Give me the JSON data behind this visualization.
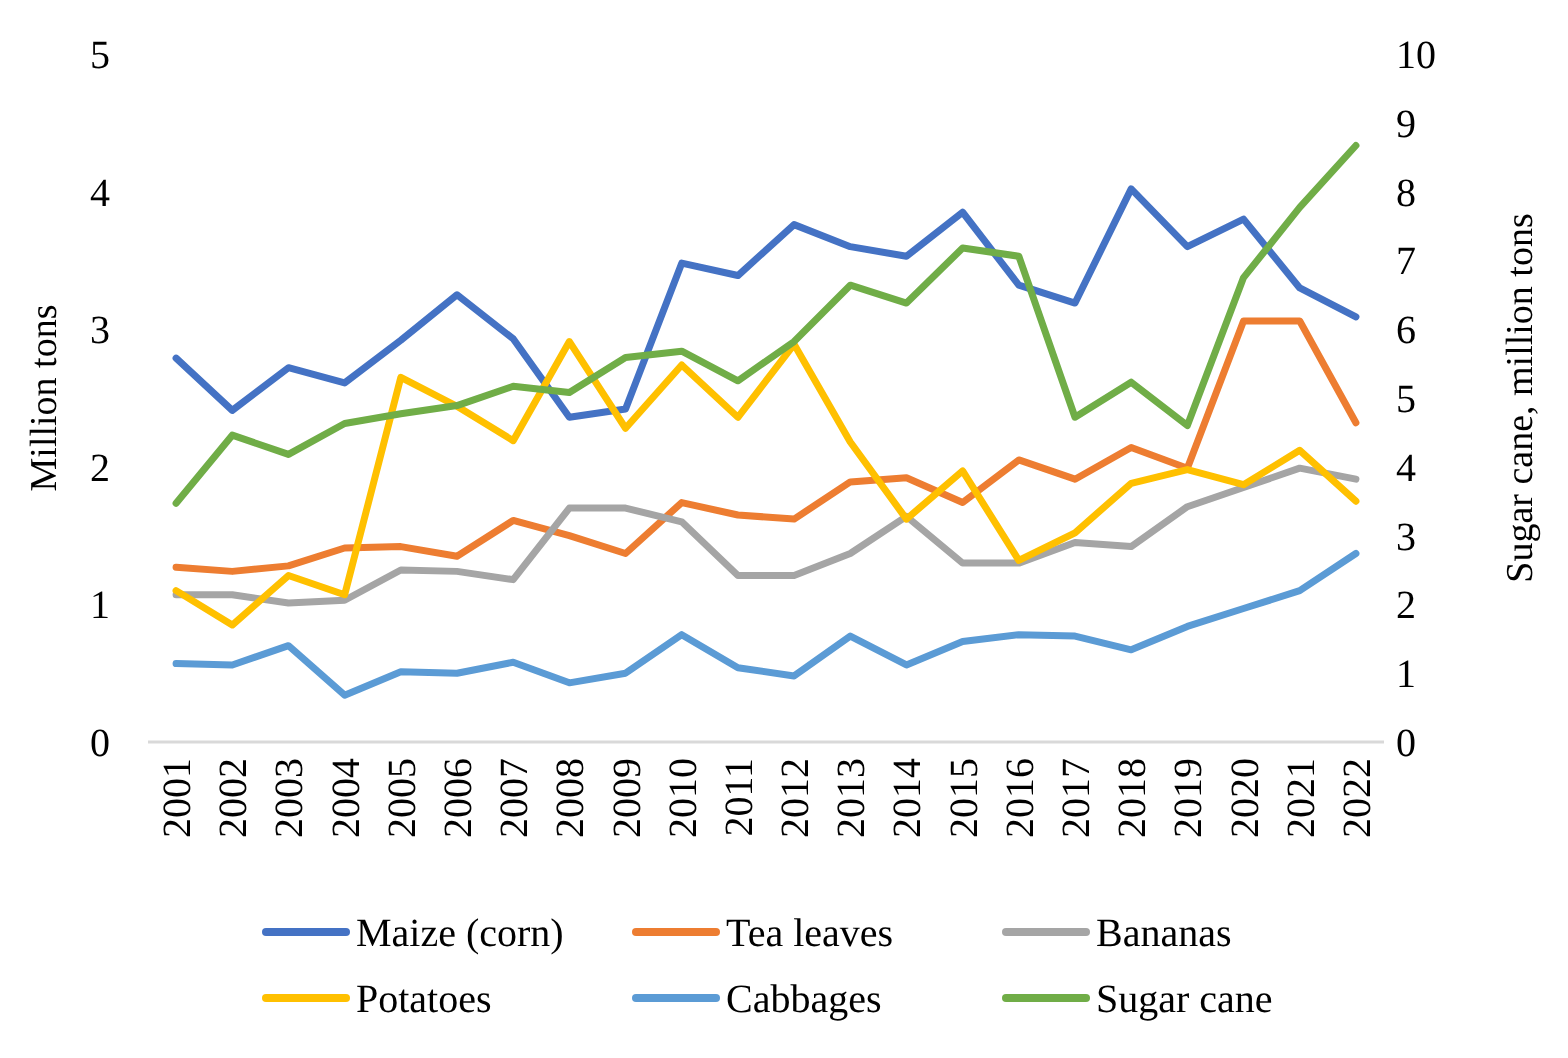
{
  "chart_data": {
    "type": "line",
    "ylabel": "Million tons",
    "y2label": "Sugar cane, million tons",
    "categories": [
      "2001",
      "2002",
      "2003",
      "2004",
      "2005",
      "2006",
      "2007",
      "2008",
      "2009",
      "2010",
      "2011",
      "2012",
      "2013",
      "2014",
      "2015",
      "2016",
      "2017",
      "2018",
      "2019",
      "2020",
      "2021",
      "2022"
    ],
    "ylim": [
      0,
      5
    ],
    "yticks": [
      0,
      1,
      2,
      3,
      4,
      5
    ],
    "y2lim": [
      0,
      10
    ],
    "y2ticks": [
      0,
      1,
      2,
      3,
      4,
      5,
      6,
      7,
      8,
      9,
      10
    ],
    "legend": "bottom",
    "grid": false,
    "marker": "none",
    "line_style": "solid",
    "series": [
      {
        "name": "Maize (corn)",
        "color": "#4472c4",
        "values": [
          2.79,
          2.41,
          2.72,
          2.61,
          2.92,
          3.25,
          2.93,
          2.36,
          2.42,
          3.48,
          3.39,
          3.76,
          3.6,
          3.53,
          3.85,
          3.32,
          3.19,
          4.02,
          3.6,
          3.8,
          3.3,
          3.09
        ]
      },
      {
        "name": "Tea leaves",
        "color": "#ed7d31",
        "values": [
          1.27,
          1.24,
          1.28,
          1.41,
          1.42,
          1.35,
          1.61,
          1.5,
          1.37,
          1.74,
          1.65,
          1.62,
          1.89,
          1.92,
          1.74,
          2.05,
          1.91,
          2.14,
          1.99,
          3.06,
          3.06,
          2.32
        ]
      },
      {
        "name": "Bananas",
        "color": "#a5a5a5",
        "values": [
          1.07,
          1.07,
          1.01,
          1.03,
          1.25,
          1.24,
          1.18,
          1.7,
          1.7,
          1.6,
          1.21,
          1.21,
          1.37,
          1.64,
          1.3,
          1.3,
          1.45,
          1.42,
          1.71,
          1.85,
          1.99,
          1.91
        ]
      },
      {
        "name": "Potatoes",
        "color": "#ffc000",
        "values": [
          1.1,
          0.85,
          1.21,
          1.07,
          2.65,
          2.44,
          2.19,
          2.91,
          2.28,
          2.74,
          2.36,
          2.89,
          2.18,
          1.62,
          1.97,
          1.32,
          1.52,
          1.88,
          1.98,
          1.87,
          2.12,
          1.75
        ]
      },
      {
        "name": "Cabbages",
        "color": "#5b9bd5",
        "values": [
          0.57,
          0.56,
          0.7,
          0.34,
          0.51,
          0.5,
          0.58,
          0.43,
          0.5,
          0.78,
          0.54,
          0.48,
          0.77,
          0.56,
          0.73,
          0.78,
          0.77,
          0.67,
          0.84,
          0.97,
          1.1,
          1.37
        ]
      },
      {
        "name": "Sugar cane",
        "color": "#70ad47",
        "axis": "y2",
        "values": [
          3.47,
          4.46,
          4.18,
          4.63,
          4.77,
          4.89,
          5.17,
          5.08,
          5.59,
          5.68,
          5.25,
          5.82,
          6.64,
          6.38,
          7.18,
          7.06,
          4.72,
          5.23,
          4.6,
          6.75,
          7.77,
          8.67
        ]
      }
    ]
  }
}
